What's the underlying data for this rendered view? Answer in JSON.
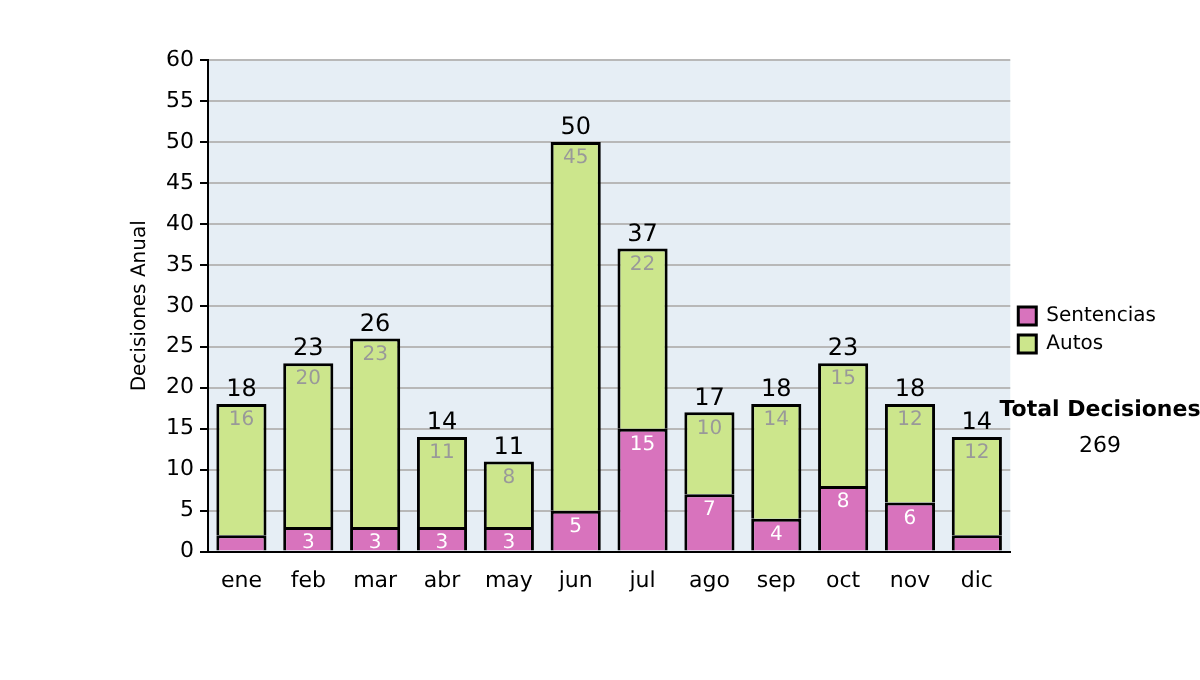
{
  "chart_data": {
    "type": "bar",
    "stacked": true,
    "ylabel": "Decisiones Anual",
    "categories": [
      "ene",
      "feb",
      "mar",
      "abr",
      "may",
      "jun",
      "jul",
      "ago",
      "sep",
      "oct",
      "nov",
      "dic"
    ],
    "series": [
      {
        "name": "Sentencias",
        "color": "#d873bd",
        "values": [
          2,
          3,
          3,
          3,
          3,
          5,
          15,
          7,
          4,
          8,
          6,
          2
        ],
        "value_labels": [
          null,
          "3",
          "3",
          "3",
          "3",
          "5",
          "15",
          "7",
          "4",
          "8",
          "6",
          null
        ]
      },
      {
        "name": "Autos",
        "color": "#cce68c",
        "values": [
          16,
          20,
          23,
          11,
          8,
          45,
          22,
          10,
          14,
          15,
          12,
          12
        ],
        "value_labels": [
          "16",
          "20",
          "23",
          "11",
          "8",
          "45",
          "22",
          "10",
          "14",
          "15",
          "12",
          "12"
        ]
      }
    ],
    "totals": [
      "18",
      "23",
      "26",
      "14",
      "11",
      "50",
      "37",
      "17",
      "18",
      "23",
      "18",
      "14"
    ],
    "ylim": [
      0,
      60
    ],
    "yticks": [
      0,
      5,
      10,
      15,
      20,
      25,
      30,
      35,
      40,
      45,
      50,
      55,
      60
    ],
    "grid": "y",
    "legend": "right",
    "annotations": [
      "Total Decisiones",
      "269"
    ]
  }
}
